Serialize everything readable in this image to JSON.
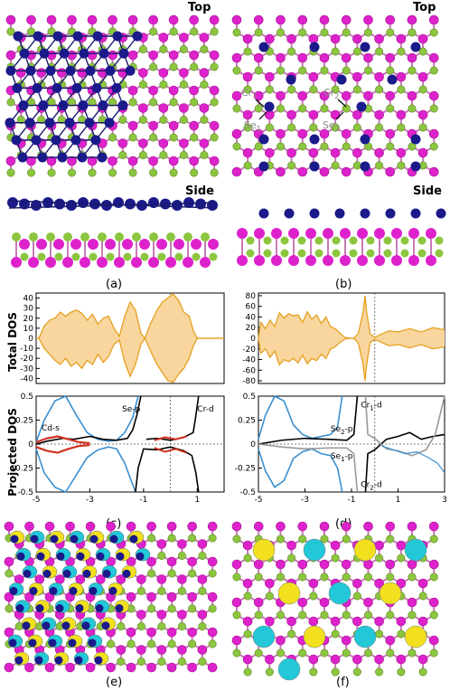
{
  "labels": {
    "top_a": "Top",
    "top_b": "Top",
    "side_a": "Side",
    "side_b": "Side",
    "panel_a": "(a)",
    "panel_b": "(b)",
    "panel_c": "(c)",
    "panel_d": "(d)",
    "panel_e": "(e)",
    "panel_f": "(f)",
    "cr1": "Cr",
    "cr1_sub": "1",
    "cr2": "Cr",
    "cr2_sub": "2",
    "se1": "Se",
    "se1_sub": "1",
    "se2": "Se",
    "se2_sub": "2"
  },
  "colors": {
    "cr": "#1a1a8a",
    "se": "#8cc63f",
    "cd": "#dd22cc",
    "bond": "#1a1a6e",
    "dos_fill": "#f8d69e",
    "dos_line": "#e6a020",
    "spin_up": "#f2e01e",
    "spin_dn": "#22c8d8",
    "blue_curve": "#3a8fd0",
    "red_curve": "#d03020",
    "gray_curve": "#999999",
    "black_curve": "#000000"
  },
  "chart_data": [
    {
      "type": "area",
      "panel": "c-total",
      "ylabel": "Total DOS",
      "xlim": [
        -5,
        2
      ],
      "ylim": [
        -45,
        45
      ],
      "yticks": [
        40,
        30,
        20,
        10,
        0,
        -10,
        -20,
        -30,
        -40
      ],
      "fermi_x": 0,
      "series": [
        {
          "values_up": [
            [
              -5,
              0
            ],
            [
              -4.9,
              0
            ],
            [
              -4.7,
              12
            ],
            [
              -4.5,
              18
            ],
            [
              -4.3,
              20
            ],
            [
              -4.1,
              26
            ],
            [
              -3.9,
              22
            ],
            [
              -3.7,
              26
            ],
            [
              -3.5,
              28
            ],
            [
              -3.3,
              25
            ],
            [
              -3.1,
              18
            ],
            [
              -2.9,
              24
            ],
            [
              -2.7,
              14
            ],
            [
              -2.5,
              20
            ],
            [
              -2.3,
              22
            ],
            [
              -2.1,
              10
            ],
            [
              -1.9,
              2
            ],
            [
              -1.7,
              22
            ],
            [
              -1.5,
              36
            ],
            [
              -1.3,
              28
            ],
            [
              -1.1,
              5
            ],
            [
              -0.95,
              0
            ],
            [
              -0.75,
              14
            ],
            [
              -0.5,
              28
            ],
            [
              -0.3,
              36
            ],
            [
              -0.1,
              40
            ],
            [
              0.1,
              44
            ],
            [
              0.3,
              38
            ],
            [
              0.5,
              26
            ],
            [
              0.7,
              22
            ],
            [
              0.85,
              8
            ],
            [
              1,
              0
            ],
            [
              2,
              0
            ]
          ],
          "values_dn": [
            [
              -5,
              0
            ],
            [
              -4.9,
              0
            ],
            [
              -4.7,
              -10
            ],
            [
              -4.5,
              -16
            ],
            [
              -4.3,
              -22
            ],
            [
              -4.1,
              -26
            ],
            [
              -3.9,
              -20
            ],
            [
              -3.7,
              -28
            ],
            [
              -3.5,
              -24
            ],
            [
              -3.3,
              -30
            ],
            [
              -3.1,
              -22
            ],
            [
              -2.9,
              -26
            ],
            [
              -2.7,
              -16
            ],
            [
              -2.5,
              -24
            ],
            [
              -2.3,
              -18
            ],
            [
              -2.1,
              -6
            ],
            [
              -1.9,
              -2
            ],
            [
              -1.7,
              -24
            ],
            [
              -1.5,
              -38
            ],
            [
              -1.3,
              -26
            ],
            [
              -1.1,
              -6
            ],
            [
              -0.95,
              0
            ],
            [
              -0.75,
              -12
            ],
            [
              -0.5,
              -26
            ],
            [
              -0.3,
              -34
            ],
            [
              -0.1,
              -42
            ],
            [
              0.1,
              -44
            ],
            [
              0.3,
              -36
            ],
            [
              0.5,
              -30
            ],
            [
              0.7,
              -20
            ],
            [
              0.85,
              -8
            ],
            [
              1,
              0
            ],
            [
              2,
              0
            ]
          ]
        }
      ]
    },
    {
      "type": "line",
      "panel": "c-projected",
      "ylabel": "Projected DOS",
      "xlim": [
        -5,
        2
      ],
      "ylim": [
        -0.5,
        0.5
      ],
      "xticks": [
        -5,
        -3,
        -1,
        1
      ],
      "yticks": [
        0.5,
        0.25,
        0,
        -0.25,
        -0.5
      ],
      "annotations": [
        "Cd-s",
        "Se-p",
        "Cr-d"
      ],
      "fermi_x": 0
    },
    {
      "type": "area",
      "panel": "d-total",
      "xlim": [
        -5,
        3
      ],
      "ylim": [
        -85,
        85
      ],
      "yticks": [
        80,
        60,
        40,
        20,
        0,
        -20,
        -40,
        -60,
        -80
      ],
      "fermi_x": 0,
      "series": [
        {
          "values_up": [
            [
              -5,
              0
            ],
            [
              -4.9,
              30
            ],
            [
              -4.7,
              18
            ],
            [
              -4.5,
              34
            ],
            [
              -4.3,
              22
            ],
            [
              -4.1,
              48
            ],
            [
              -3.9,
              38
            ],
            [
              -3.7,
              46
            ],
            [
              -3.5,
              42
            ],
            [
              -3.3,
              44
            ],
            [
              -3.1,
              30
            ],
            [
              -2.9,
              50
            ],
            [
              -2.7,
              36
            ],
            [
              -2.5,
              44
            ],
            [
              -2.3,
              28
            ],
            [
              -2.1,
              40
            ],
            [
              -1.9,
              22
            ],
            [
              -1.7,
              18
            ],
            [
              -1.5,
              10
            ],
            [
              -1.3,
              2
            ],
            [
              -1.1,
              0
            ],
            [
              -0.9,
              0
            ],
            [
              -0.7,
              10
            ],
            [
              -0.5,
              50
            ],
            [
              -0.42,
              80
            ],
            [
              -0.35,
              50
            ],
            [
              -0.2,
              8
            ],
            [
              0,
              2
            ],
            [
              0.3,
              8
            ],
            [
              0.6,
              14
            ],
            [
              1,
              12
            ],
            [
              1.5,
              18
            ],
            [
              2,
              12
            ],
            [
              2.5,
              20
            ],
            [
              3,
              16
            ]
          ],
          "values_dn": [
            [
              -5,
              0
            ],
            [
              -4.9,
              -28
            ],
            [
              -4.7,
              -20
            ],
            [
              -4.5,
              -36
            ],
            [
              -4.3,
              -24
            ],
            [
              -4.1,
              -50
            ],
            [
              -3.9,
              -40
            ],
            [
              -3.7,
              -44
            ],
            [
              -3.5,
              -38
            ],
            [
              -3.3,
              -46
            ],
            [
              -3.1,
              -32
            ],
            [
              -2.9,
              -48
            ],
            [
              -2.7,
              -38
            ],
            [
              -2.5,
              -42
            ],
            [
              -2.3,
              -30
            ],
            [
              -2.1,
              -38
            ],
            [
              -1.9,
              -20
            ],
            [
              -1.7,
              -16
            ],
            [
              -1.5,
              -8
            ],
            [
              -1.3,
              -2
            ],
            [
              -1.1,
              0
            ],
            [
              -0.9,
              0
            ],
            [
              -0.7,
              -10
            ],
            [
              -0.5,
              -50
            ],
            [
              -0.42,
              -80
            ],
            [
              -0.35,
              -50
            ],
            [
              -0.2,
              -8
            ],
            [
              0,
              -2
            ],
            [
              0.3,
              -8
            ],
            [
              0.6,
              -14
            ],
            [
              1,
              -12
            ],
            [
              1.5,
              -18
            ],
            [
              2,
              -12
            ],
            [
              2.5,
              -20
            ],
            [
              3,
              -16
            ]
          ]
        }
      ]
    },
    {
      "type": "line",
      "panel": "d-projected",
      "xlim": [
        -5,
        3
      ],
      "ylim": [
        -0.5,
        0.5
      ],
      "xticks": [
        -5,
        -3,
        -1,
        1,
        3
      ],
      "yticks": [
        0.5,
        0.25,
        0,
        -0.25,
        -0.5
      ],
      "annotations": [
        "Cr1-d",
        "Se1-p",
        "Se2-p",
        "Cr2-d"
      ],
      "fermi_x": 0
    }
  ],
  "dos_annotations": {
    "c_cds": "Cd-s",
    "c_sep": "Se-p",
    "c_crd": "Cr-d",
    "d_cr1": "Cr",
    "d_cr1_sub": "1",
    "d_cr1_suf": "-d",
    "d_se2": "Se",
    "d_se2_sub": "2",
    "d_se2_suf": "-p",
    "d_se1": "Se",
    "d_se1_sub": "1",
    "d_se1_suf": "-p",
    "d_cr2": "Cr",
    "d_cr2_sub": "2",
    "d_cr2_suf": "-d"
  }
}
